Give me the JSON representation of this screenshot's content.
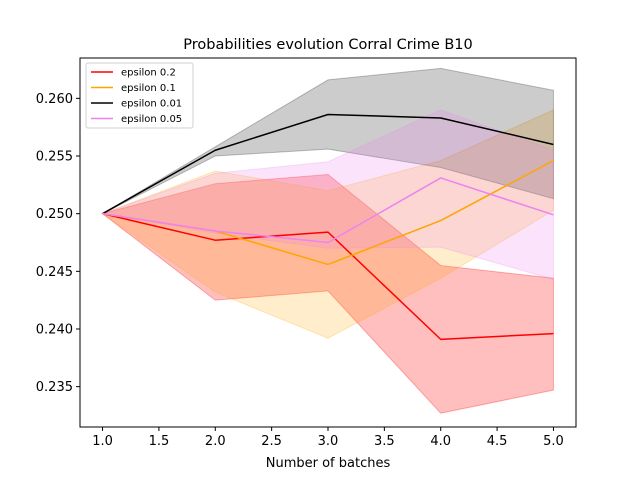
{
  "chart_data": {
    "type": "line",
    "title": "Probabilities evolution Corral Crime B10",
    "xlabel": "Number of batches",
    "ylabel": "",
    "xlim": [
      0.8,
      5.2
    ],
    "ylim": [
      0.2315,
      0.2635
    ],
    "xticks": [
      "1.0",
      "1.5",
      "2.0",
      "2.5",
      "3.0",
      "3.5",
      "4.0",
      "4.5",
      "5.0"
    ],
    "yticks": [
      "0.235",
      "0.240",
      "0.245",
      "0.250",
      "0.255",
      "0.260"
    ],
    "legend_position": "top-left",
    "grid": false,
    "x": [
      1,
      2,
      3,
      4,
      5
    ],
    "series": [
      {
        "name": "epsilon 0.2",
        "color": "#ff0000",
        "band_color": "#ff0000",
        "band_opacity": 0.25,
        "values": [
          0.25,
          0.2477,
          0.2484,
          0.2391,
          0.2396
        ],
        "lower": [
          0.25,
          0.2425,
          0.2433,
          0.2327,
          0.2347
        ],
        "upper": [
          0.25,
          0.2526,
          0.2534,
          0.2455,
          0.2444
        ]
      },
      {
        "name": "epsilon 0.1",
        "color": "#ffa500",
        "band_color": "#ffa500",
        "band_opacity": 0.2,
        "values": [
          0.25,
          0.2485,
          0.2456,
          0.2494,
          0.2546
        ],
        "lower": [
          0.25,
          0.2432,
          0.2392,
          0.2444,
          0.2503
        ],
        "upper": [
          0.25,
          0.2537,
          0.252,
          0.2546,
          0.259
        ]
      },
      {
        "name": "epsilon 0.01",
        "color": "#000000",
        "band_color": "#000000",
        "band_opacity": 0.2,
        "values": [
          0.25,
          0.2555,
          0.2586,
          0.2583,
          0.256
        ],
        "lower": [
          0.25,
          0.255,
          0.2556,
          0.254,
          0.2513
        ],
        "upper": [
          0.25,
          0.2558,
          0.2616,
          0.2626,
          0.2607
        ]
      },
      {
        "name": "epsilon 0.05",
        "color": "#ee82ee",
        "band_color": "#ee82ee",
        "band_opacity": 0.22,
        "values": [
          0.25,
          0.2485,
          0.2475,
          0.2531,
          0.2499
        ],
        "lower": [
          0.25,
          0.2483,
          0.247,
          0.2471,
          0.2443
        ],
        "upper": [
          0.25,
          0.2535,
          0.2545,
          0.259,
          0.2555
        ]
      }
    ]
  }
}
